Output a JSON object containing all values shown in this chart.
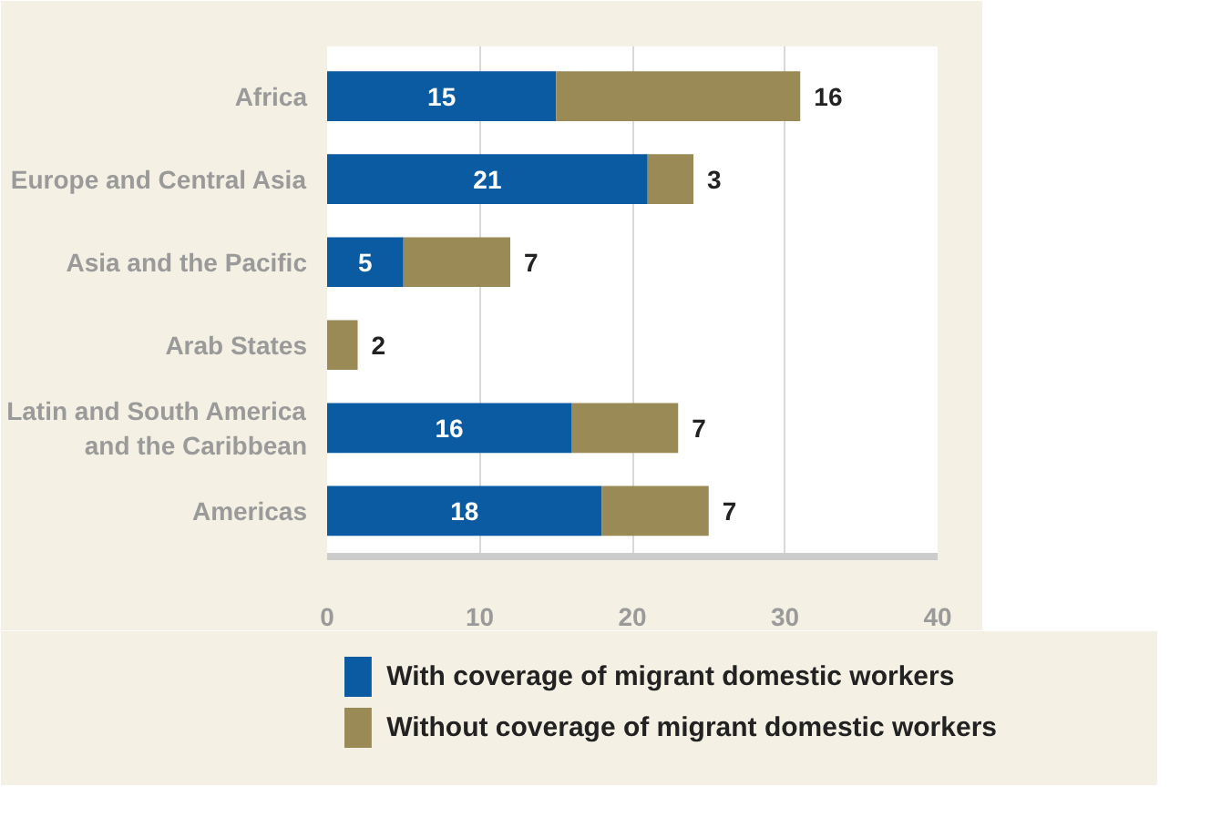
{
  "chart_data": {
    "type": "bar",
    "orientation": "horizontal",
    "stacked": true,
    "categories": [
      "Africa",
      "Europe and Central Asia",
      "Asia and the Pacific",
      "Arab States",
      "Latin and South America and the Caribbean",
      "Americas"
    ],
    "series": [
      {
        "name": "With coverage of migrant domestic workers",
        "color": "#0b5ba3",
        "values": [
          15,
          21,
          5,
          null,
          16,
          18
        ]
      },
      {
        "name": "Without coverage of migrant domestic workers",
        "color": "#9a8a56",
        "values": [
          16,
          3,
          7,
          2,
          7,
          7
        ]
      }
    ],
    "xlim": [
      0,
      40
    ],
    "xticks": [
      0,
      10,
      20,
      30,
      40
    ],
    "grid": "x",
    "legend": "bottom",
    "data_labels": true
  }
}
